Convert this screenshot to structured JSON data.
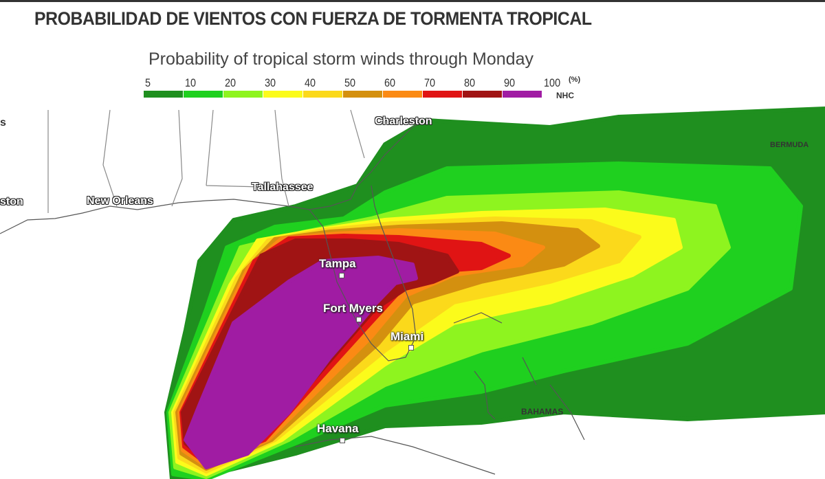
{
  "headline": "PROBABILIDAD DE VIENTOS CON FUERZA DE TORMENTA TROPICAL",
  "legend": {
    "title": "Probability of tropical storm winds through Monday",
    "ticks": [
      "5",
      "10",
      "20",
      "30",
      "40",
      "50",
      "60",
      "70",
      "80",
      "90",
      "100"
    ],
    "unit": "(%)",
    "source": "NHC",
    "colors": [
      "#1f8f1f",
      "#1fd01f",
      "#8ef41f",
      "#fbfb1b",
      "#fbd91b",
      "#d4900f",
      "#fb8a14",
      "#e01414",
      "#a01414",
      "#a01ca3"
    ]
  },
  "places": {
    "charleston": "Charleston",
    "tallahassee": "Tallahassee",
    "new_orleans": "New Orleans",
    "houston_partial": "ston",
    "left_partial": "s",
    "tampa": "Tampa",
    "fort_myers": "Fort Myers",
    "miami": "Miami",
    "havana": "Havana",
    "bahamas": "BAHAMAS",
    "bermuda": "BERMUDA"
  }
}
